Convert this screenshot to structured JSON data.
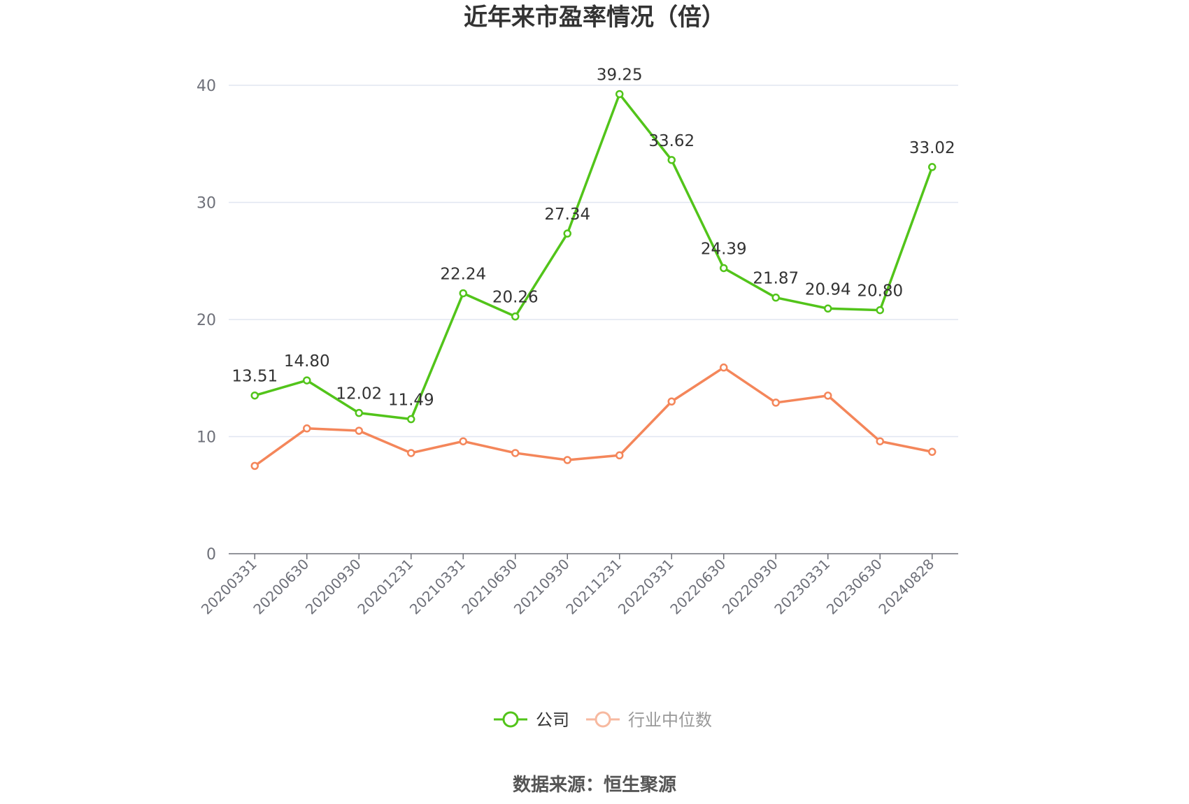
{
  "chart_data": {
    "type": "line",
    "title": "近年来市盈率情况（倍）",
    "categories": [
      "20200331",
      "20200630",
      "20200930",
      "20201231",
      "20210331",
      "20210630",
      "20210930",
      "20211231",
      "20220331",
      "20220630",
      "20220930",
      "20230331",
      "20230630",
      "20240828"
    ],
    "series": [
      {
        "name": "公司",
        "color": "#52c41a",
        "values": [
          13.51,
          14.8,
          12.02,
          11.49,
          22.24,
          20.26,
          27.34,
          39.25,
          33.62,
          24.39,
          21.87,
          20.94,
          20.8,
          33.02
        ],
        "labels": [
          "13.51",
          "14.80",
          "12.02",
          "11.49",
          "22.24",
          "20.26",
          "27.34",
          "39.25",
          "33.62",
          "24.39",
          "21.87",
          "20.94",
          "20.80",
          "33.02"
        ]
      },
      {
        "name": "行业中位数",
        "color": "#f4865a",
        "legend_color": "#f7b9a0",
        "values": [
          7.5,
          10.7,
          10.5,
          8.6,
          9.6,
          8.6,
          8.0,
          8.4,
          13.0,
          15.9,
          12.9,
          13.5,
          9.6,
          8.7
        ]
      }
    ],
    "yticks": [
      "0",
      "10",
      "20",
      "30",
      "40"
    ],
    "ylim": [
      0,
      40
    ],
    "grid": true,
    "legend": "bottom-center",
    "source": "数据来源：恒生聚源"
  }
}
